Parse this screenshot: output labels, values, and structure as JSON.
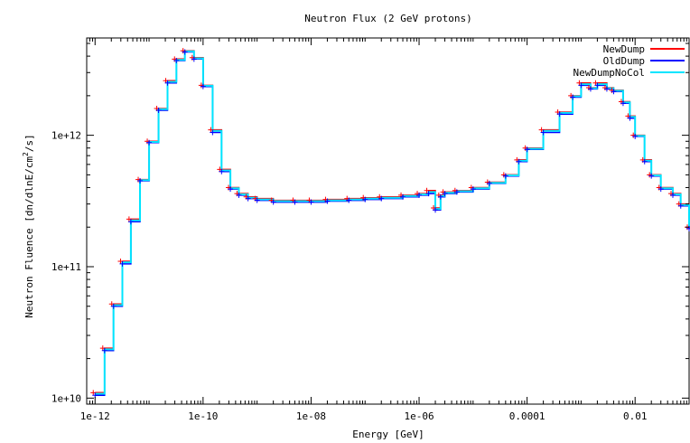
{
  "chart_data": {
    "type": "line",
    "title": "Neutron Flux  (2 GeV protons)",
    "xlabel": "Energy [GeV]",
    "ylabel_parts": [
      "Neutron Fluence [dn/dlnE/cm",
      "2",
      "/s]"
    ],
    "xscale": "log",
    "yscale": "log",
    "xlim": [
      7e-13,
      0.1
    ],
    "ylim": [
      9000000000.0,
      5500000000000.0
    ],
    "x_ticks": [
      {
        "value": 1e-12,
        "label": "1e-12"
      },
      {
        "value": 1e-10,
        "label": "1e-10"
      },
      {
        "value": 1e-08,
        "label": "1e-08"
      },
      {
        "value": 1e-06,
        "label": "1e-06"
      },
      {
        "value": 0.0001,
        "label": "0.0001"
      },
      {
        "value": 0.01,
        "label": "0.01"
      }
    ],
    "y_ticks": [
      {
        "value": 10000000000.0,
        "label": "1e+10"
      },
      {
        "value": 100000000000.0,
        "label": "1e+11"
      },
      {
        "value": 1000000000000.0,
        "label": "1e+12"
      }
    ],
    "grid": false,
    "legend_position": "top-right",
    "x": [
      1e-12,
      1.5e-12,
      2.2e-12,
      3.2e-12,
      4.6e-12,
      6.8e-12,
      1e-11,
      1.5e-11,
      2.2e-11,
      3.2e-11,
      4.6e-11,
      6.8e-11,
      1e-10,
      1.5e-10,
      2.2e-10,
      3.2e-10,
      4.6e-10,
      6.8e-10,
      1e-09,
      2e-09,
      5e-09,
      1e-08,
      2e-08,
      5e-08,
      1e-07,
      2e-07,
      5e-07,
      1e-06,
      1.5e-06,
      2e-06,
      2.5e-06,
      3e-06,
      5e-06,
      1e-05,
      2e-05,
      4e-05,
      7e-05,
      0.0001,
      0.0002,
      0.0004,
      0.0007,
      0.001,
      0.0015,
      0.002,
      0.003,
      0.004,
      0.006,
      0.008,
      0.01,
      0.015,
      0.02,
      0.03,
      0.05,
      0.07,
      0.1
    ],
    "series": [
      {
        "name": "NewDump",
        "color": "#ff0000",
        "values": [
          11000000000.0,
          24000000000.0,
          52000000000.0,
          110000000000.0,
          230000000000.0,
          460000000000.0,
          900000000000.0,
          1600000000000.0,
          2600000000000.0,
          3800000000000.0,
          4400000000000.0,
          3900000000000.0,
          2400000000000.0,
          1100000000000.0,
          550000000000.0,
          400000000000.0,
          360000000000.0,
          340000000000.0,
          330000000000.0,
          320000000000.0,
          320000000000.0,
          320000000000.0,
          325000000000.0,
          330000000000.0,
          335000000000.0,
          340000000000.0,
          350000000000.0,
          360000000000.0,
          380000000000.0,
          280000000000.0,
          350000000000.0,
          370000000000.0,
          380000000000.0,
          400000000000.0,
          440000000000.0,
          500000000000.0,
          650000000000.0,
          800000000000.0,
          1100000000000.0,
          1500000000000.0,
          2000000000000.0,
          2500000000000.0,
          2300000000000.0,
          2500000000000.0,
          2300000000000.0,
          2200000000000.0,
          1800000000000.0,
          1400000000000.0,
          1000000000000.0,
          650000000000.0,
          500000000000.0,
          400000000000.0,
          360000000000.0,
          300000000000.0,
          200000000000.0
        ]
      },
      {
        "name": "OldDump",
        "color": "#0000ff",
        "values": [
          10500000000.0,
          23000000000.0,
          50000000000.0,
          105000000000.0,
          220000000000.0,
          450000000000.0,
          880000000000.0,
          1550000000000.0,
          2500000000000.0,
          3700000000000.0,
          4300000000000.0,
          3800000000000.0,
          2350000000000.0,
          1050000000000.0,
          530000000000.0,
          390000000000.0,
          350000000000.0,
          330000000000.0,
          320000000000.0,
          310000000000.0,
          310000000000.0,
          310000000000.0,
          315000000000.0,
          320000000000.0,
          325000000000.0,
          330000000000.0,
          340000000000.0,
          350000000000.0,
          360000000000.0,
          270000000000.0,
          340000000000.0,
          360000000000.0,
          370000000000.0,
          390000000000.0,
          430000000000.0,
          490000000000.0,
          630000000000.0,
          780000000000.0,
          1050000000000.0,
          1450000000000.0,
          1950000000000.0,
          2400000000000.0,
          2250000000000.0,
          2400000000000.0,
          2250000000000.0,
          2150000000000.0,
          1750000000000.0,
          1350000000000.0,
          980000000000.0,
          630000000000.0,
          490000000000.0,
          390000000000.0,
          350000000000.0,
          290000000000.0,
          195000000000.0
        ]
      },
      {
        "name": "NewDumpNoCol",
        "color": "#00e5ff",
        "values": [
          10800000000.0,
          23500000000.0,
          51000000000.0,
          108000000000.0,
          225000000000.0,
          455000000000.0,
          890000000000.0,
          1580000000000.0,
          2550000000000.0,
          3750000000000.0,
          4350000000000.0,
          3850000000000.0,
          2380000000000.0,
          1080000000000.0,
          540000000000.0,
          395000000000.0,
          355000000000.0,
          335000000000.0,
          325000000000.0,
          315000000000.0,
          315000000000.0,
          315000000000.0,
          320000000000.0,
          325000000000.0,
          330000000000.0,
          335000000000.0,
          345000000000.0,
          355000000000.0,
          370000000000.0,
          275000000000.0,
          345000000000.0,
          365000000000.0,
          375000000000.0,
          395000000000.0,
          435000000000.0,
          495000000000.0,
          640000000000.0,
          790000000000.0,
          1080000000000.0,
          1480000000000.0,
          1980000000000.0,
          2450000000000.0,
          2280000000000.0,
          2450000000000.0,
          2280000000000.0,
          2180000000000.0,
          1780000000000.0,
          1380000000000.0,
          990000000000.0,
          640000000000.0,
          495000000000.0,
          395000000000.0,
          355000000000.0,
          295000000000.0,
          198000000000.0
        ]
      }
    ]
  }
}
